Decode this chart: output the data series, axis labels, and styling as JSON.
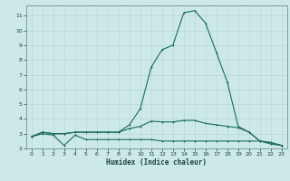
{
  "xlabel": "Humidex (Indice chaleur)",
  "xlim": [
    -0.5,
    23.5
  ],
  "ylim": [
    2.0,
    11.7
  ],
  "yticks": [
    2,
    3,
    4,
    5,
    6,
    7,
    8,
    9,
    10,
    11
  ],
  "xticks": [
    0,
    1,
    2,
    3,
    4,
    5,
    6,
    7,
    8,
    9,
    10,
    11,
    12,
    13,
    14,
    15,
    16,
    17,
    18,
    19,
    20,
    21,
    22,
    23
  ],
  "bg_color": "#cce9e8",
  "grid_color": "#b8d8d5",
  "line_color": "#1a6b5a",
  "line1_x": [
    0,
    1,
    2,
    3,
    4,
    5,
    6,
    7,
    8,
    9,
    10,
    11,
    12,
    13,
    14,
    15,
    16,
    17,
    18,
    19,
    20,
    21,
    22,
    23
  ],
  "line1_y": [
    2.8,
    3.0,
    2.9,
    2.2,
    2.9,
    2.6,
    2.6,
    2.6,
    2.6,
    2.6,
    2.6,
    2.6,
    2.5,
    2.5,
    2.5,
    2.5,
    2.5,
    2.5,
    2.5,
    2.5,
    2.5,
    2.5,
    2.3,
    2.2
  ],
  "line2_x": [
    0,
    1,
    2,
    3,
    4,
    5,
    6,
    7,
    8,
    9,
    10,
    11,
    12,
    13,
    14,
    15,
    16,
    17,
    18,
    19,
    20,
    21,
    22,
    23
  ],
  "line2_y": [
    2.8,
    3.1,
    3.0,
    3.0,
    3.1,
    3.1,
    3.1,
    3.1,
    3.1,
    3.6,
    4.7,
    7.5,
    8.7,
    9.0,
    11.2,
    11.35,
    10.5,
    8.5,
    6.5,
    3.5,
    3.1,
    2.5,
    2.4,
    2.2
  ],
  "line3_x": [
    0,
    1,
    2,
    3,
    4,
    5,
    6,
    7,
    8,
    9,
    10,
    11,
    12,
    13,
    14,
    15,
    16,
    17,
    18,
    19,
    20,
    21,
    22,
    23
  ],
  "line3_y": [
    2.8,
    3.1,
    3.0,
    3.0,
    3.1,
    3.1,
    3.1,
    3.1,
    3.1,
    3.35,
    3.5,
    3.85,
    3.8,
    3.8,
    3.9,
    3.9,
    3.7,
    3.6,
    3.5,
    3.4,
    3.1,
    2.5,
    2.4,
    2.2
  ]
}
